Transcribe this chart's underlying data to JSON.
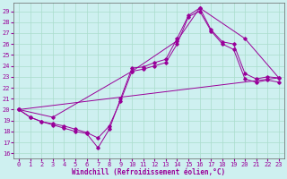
{
  "xlabel": "Windchill (Refroidissement éolien,°C)",
  "bg_color": "#cef0f0",
  "grid_color": "#aaddcc",
  "line_color": "#990099",
  "xlim": [
    -0.5,
    23.5
  ],
  "ylim": [
    15.5,
    29.8
  ],
  "yticks": [
    16,
    17,
    18,
    19,
    20,
    21,
    22,
    23,
    24,
    25,
    26,
    27,
    28,
    29
  ],
  "xticks": [
    0,
    1,
    2,
    3,
    4,
    5,
    6,
    7,
    8,
    9,
    10,
    11,
    12,
    13,
    14,
    15,
    16,
    17,
    18,
    19,
    20,
    21,
    22,
    23
  ],
  "lines": [
    {
      "x": [
        0,
        1,
        2,
        3,
        4,
        5,
        6,
        7,
        8,
        9,
        10,
        11,
        12,
        13,
        14,
        15,
        16,
        17,
        18,
        19,
        20,
        21,
        22,
        23
      ],
      "y": [
        20.0,
        19.3,
        18.9,
        18.6,
        18.3,
        18.0,
        17.8,
        16.5,
        18.2,
        21.0,
        23.8,
        23.9,
        24.3,
        24.6,
        26.5,
        28.6,
        29.3,
        27.3,
        26.2,
        26.0,
        23.3,
        22.8,
        23.0,
        22.9
      ]
    },
    {
      "x": [
        0,
        1,
        2,
        3,
        4,
        5,
        6,
        7,
        8,
        9,
        10,
        11,
        12,
        13,
        14,
        15,
        16,
        17,
        18,
        19,
        20,
        21,
        22,
        23
      ],
      "y": [
        20.0,
        19.3,
        18.9,
        18.7,
        18.5,
        18.2,
        17.9,
        17.4,
        18.5,
        20.8,
        23.5,
        23.7,
        24.0,
        24.3,
        26.0,
        28.5,
        29.0,
        27.2,
        26.0,
        25.5,
        22.8,
        22.5,
        22.7,
        22.5
      ]
    },
    {
      "x": [
        0,
        3,
        10,
        14,
        16,
        20,
        23
      ],
      "y": [
        20.0,
        19.3,
        23.5,
        26.3,
        29.3,
        26.5,
        22.9
      ]
    },
    {
      "x": [
        0,
        23
      ],
      "y": [
        20.0,
        22.9
      ]
    }
  ]
}
